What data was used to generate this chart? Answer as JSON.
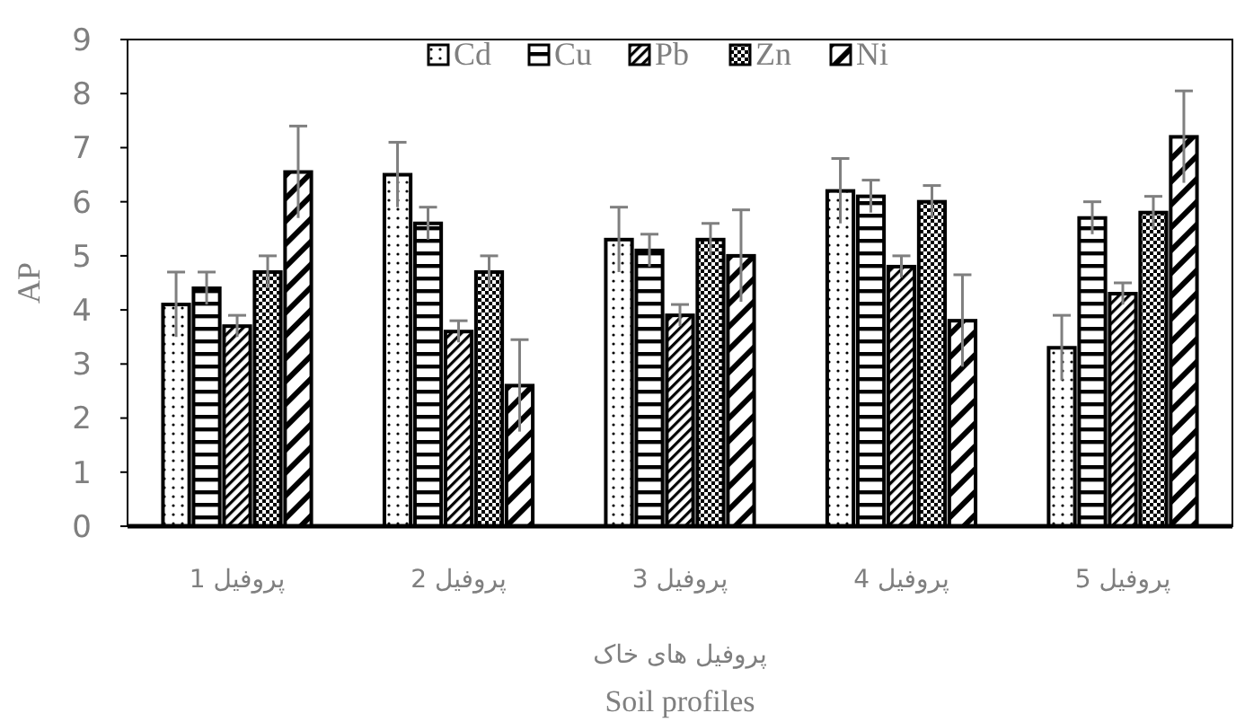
{
  "chart_data": {
    "type": "bar",
    "categories": [
      "پروفیل 1",
      "پروفیل 2",
      "پروفیل 3",
      "پروفیل 4",
      "پروفیل 5"
    ],
    "xlabel": "پروفیل های خاک\nSoil profiles",
    "ylabel": "AP",
    "ylim": [
      0,
      9
    ],
    "yticks": [
      0,
      1,
      2,
      3,
      4,
      5,
      6,
      7,
      8,
      9
    ],
    "grid": false,
    "legend": "top",
    "series": [
      {
        "name": "Cd",
        "color": "#000000",
        "values": [
          4.1,
          6.5,
          5.3,
          6.2,
          3.3
        ],
        "errors": [
          0.6,
          0.6,
          0.6,
          0.6,
          0.6
        ]
      },
      {
        "name": "Cu",
        "color": "#000000",
        "values": [
          4.4,
          5.6,
          5.1,
          6.1,
          5.7
        ],
        "errors": [
          0.3,
          0.3,
          0.3,
          0.3,
          0.3
        ]
      },
      {
        "name": "Pb",
        "color": "#000000",
        "values": [
          3.7,
          3.6,
          3.9,
          4.8,
          4.3
        ],
        "errors": [
          0.2,
          0.2,
          0.2,
          0.2,
          0.2
        ]
      },
      {
        "name": "Zn",
        "color": "#000000",
        "values": [
          4.7,
          4.7,
          5.3,
          6.0,
          5.8
        ],
        "errors": [
          0.3,
          0.3,
          0.3,
          0.3,
          0.3
        ]
      },
      {
        "name": "Ni",
        "color": "#000000",
        "values": [
          6.55,
          2.6,
          5.0,
          3.8,
          7.2
        ],
        "errors": [
          0.85,
          0.85,
          0.85,
          0.85,
          0.85
        ]
      }
    ]
  }
}
